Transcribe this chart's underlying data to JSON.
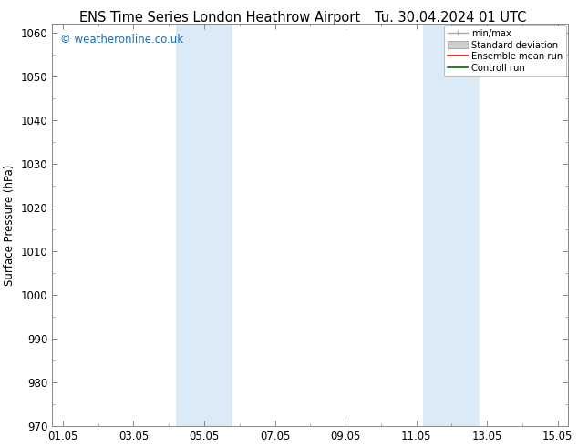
{
  "title_left": "ENS Time Series London Heathrow Airport",
  "title_right": "Tu. 30.04.2024 01 UTC",
  "ylabel": "Surface Pressure (hPa)",
  "ylim": [
    970,
    1062
  ],
  "yticks": [
    970,
    980,
    990,
    1000,
    1010,
    1020,
    1030,
    1040,
    1050,
    1060
  ],
  "xlim": [
    -0.3,
    14.3
  ],
  "xtick_labels": [
    "01.05",
    "03.05",
    "05.05",
    "07.05",
    "09.05",
    "11.05",
    "13.05",
    "15.05"
  ],
  "xtick_positions": [
    0,
    2,
    4,
    6,
    8,
    10,
    12,
    14
  ],
  "shaded_bands": [
    {
      "x_start": 3.2,
      "x_end": 4.8,
      "color": "#daeaf7"
    },
    {
      "x_start": 10.2,
      "x_end": 11.8,
      "color": "#daeaf7"
    }
  ],
  "watermark": "© weatheronline.co.uk",
  "watermark_color": "#1a6db5",
  "legend_labels": [
    "min/max",
    "Standard deviation",
    "Ensemble mean run",
    "Controll run"
  ],
  "background_color": "#ffffff",
  "title_fontsize": 10.5,
  "tick_fontsize": 8.5,
  "ylabel_fontsize": 8.5
}
